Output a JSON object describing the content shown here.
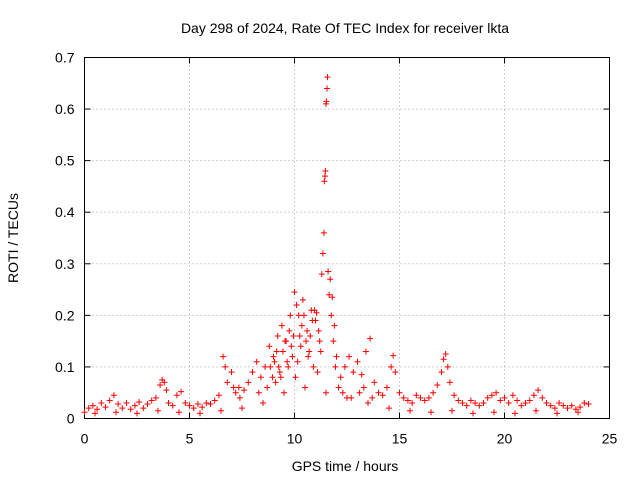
{
  "chart_data": {
    "type": "scatter",
    "title": "Day 298 of 2024, Rate Of TEC Index for receiver lkta",
    "xlabel": "GPS time / hours",
    "ylabel": "ROTI / TECUs",
    "xlim": [
      0,
      25
    ],
    "ylim": [
      0,
      0.7
    ],
    "x_ticks": [
      0,
      5,
      10,
      15,
      20,
      25
    ],
    "y_ticks": [
      0,
      0.1,
      0.2,
      0.3,
      0.4,
      0.5,
      0.6,
      0.7
    ],
    "x_tick_labels": [
      "0",
      "5",
      "10",
      "15",
      "20",
      "25"
    ],
    "y_tick_labels": [
      "0",
      "0.1",
      "0.2",
      "0.3",
      "0.4",
      "0.5",
      "0.6",
      "0.7"
    ],
    "grid": true,
    "marker": "+",
    "color": "#ff0000",
    "series": [
      {
        "name": "ROTI",
        "points": [
          [
            0.0,
            0.012
          ],
          [
            0.2,
            0.02
          ],
          [
            0.4,
            0.025
          ],
          [
            0.6,
            0.018
          ],
          [
            0.8,
            0.03
          ],
          [
            1.0,
            0.022
          ],
          [
            1.2,
            0.035
          ],
          [
            1.4,
            0.045
          ],
          [
            1.6,
            0.028
          ],
          [
            1.8,
            0.02
          ],
          [
            2.0,
            0.03
          ],
          [
            2.2,
            0.018
          ],
          [
            2.4,
            0.025
          ],
          [
            2.6,
            0.032
          ],
          [
            2.8,
            0.02
          ],
          [
            3.0,
            0.028
          ],
          [
            3.2,
            0.035
          ],
          [
            3.4,
            0.04
          ],
          [
            3.6,
            0.065
          ],
          [
            3.7,
            0.075
          ],
          [
            3.8,
            0.07
          ],
          [
            3.9,
            0.055
          ],
          [
            4.0,
            0.03
          ],
          [
            4.2,
            0.025
          ],
          [
            4.4,
            0.045
          ],
          [
            4.6,
            0.052
          ],
          [
            4.8,
            0.03
          ],
          [
            5.0,
            0.025
          ],
          [
            5.2,
            0.02
          ],
          [
            5.4,
            0.028
          ],
          [
            5.6,
            0.022
          ],
          [
            5.8,
            0.03
          ],
          [
            6.0,
            0.028
          ],
          [
            6.2,
            0.035
          ],
          [
            6.4,
            0.045
          ],
          [
            6.6,
            0.12
          ],
          [
            6.7,
            0.1
          ],
          [
            6.8,
            0.07
          ],
          [
            7.0,
            0.09
          ],
          [
            7.1,
            0.06
          ],
          [
            7.2,
            0.05
          ],
          [
            7.4,
            0.04
          ],
          [
            7.6,
            0.055
          ],
          [
            7.8,
            0.07
          ],
          [
            8.0,
            0.09
          ],
          [
            8.2,
            0.11
          ],
          [
            8.4,
            0.08
          ],
          [
            8.6,
            0.1
          ],
          [
            8.8,
            0.14
          ],
          [
            9.0,
            0.12
          ],
          [
            9.2,
            0.16
          ],
          [
            9.4,
            0.18
          ],
          [
            9.6,
            0.15
          ],
          [
            9.8,
            0.2
          ],
          [
            10.0,
            0.245
          ],
          [
            10.1,
            0.22
          ],
          [
            10.2,
            0.2
          ],
          [
            10.4,
            0.23
          ],
          [
            10.6,
            0.17
          ],
          [
            10.8,
            0.21
          ],
          [
            11.0,
            0.19
          ],
          [
            11.2,
            0.15
          ],
          [
            11.3,
            0.28
          ],
          [
            11.35,
            0.32
          ],
          [
            11.4,
            0.36
          ],
          [
            11.42,
            0.46
          ],
          [
            11.45,
            0.47
          ],
          [
            11.47,
            0.48
          ],
          [
            11.5,
            0.61
          ],
          [
            11.52,
            0.615
          ],
          [
            11.55,
            0.64
          ],
          [
            11.57,
            0.662
          ],
          [
            11.6,
            0.285
          ],
          [
            11.7,
            0.27
          ],
          [
            11.8,
            0.235
          ],
          [
            11.9,
            0.18
          ],
          [
            12.0,
            0.12
          ],
          [
            12.2,
            0.08
          ],
          [
            12.4,
            0.1
          ],
          [
            12.6,
            0.12
          ],
          [
            12.8,
            0.09
          ],
          [
            13.0,
            0.11
          ],
          [
            13.2,
            0.085
          ],
          [
            13.4,
            0.13
          ],
          [
            13.6,
            0.155
          ],
          [
            13.8,
            0.07
          ],
          [
            14.0,
            0.05
          ],
          [
            14.2,
            0.045
          ],
          [
            14.4,
            0.06
          ],
          [
            14.6,
            0.1
          ],
          [
            14.7,
            0.122
          ],
          [
            14.8,
            0.09
          ],
          [
            15.0,
            0.05
          ],
          [
            15.2,
            0.04
          ],
          [
            15.4,
            0.035
          ],
          [
            15.6,
            0.03
          ],
          [
            15.8,
            0.045
          ],
          [
            16.0,
            0.04
          ],
          [
            16.2,
            0.035
          ],
          [
            16.4,
            0.04
          ],
          [
            16.6,
            0.05
          ],
          [
            16.8,
            0.065
          ],
          [
            17.0,
            0.09
          ],
          [
            17.1,
            0.115
          ],
          [
            17.2,
            0.125
          ],
          [
            17.3,
            0.1
          ],
          [
            17.4,
            0.07
          ],
          [
            17.6,
            0.045
          ],
          [
            17.8,
            0.035
          ],
          [
            18.0,
            0.03
          ],
          [
            18.2,
            0.025
          ],
          [
            18.4,
            0.035
          ],
          [
            18.6,
            0.03
          ],
          [
            18.8,
            0.025
          ],
          [
            19.0,
            0.03
          ],
          [
            19.2,
            0.04
          ],
          [
            19.4,
            0.045
          ],
          [
            19.6,
            0.05
          ],
          [
            19.8,
            0.035
          ],
          [
            20.0,
            0.04
          ],
          [
            20.2,
            0.03
          ],
          [
            20.4,
            0.045
          ],
          [
            20.6,
            0.035
          ],
          [
            20.8,
            0.025
          ],
          [
            21.0,
            0.03
          ],
          [
            21.2,
            0.035
          ],
          [
            21.4,
            0.045
          ],
          [
            21.6,
            0.055
          ],
          [
            21.8,
            0.04
          ],
          [
            22.0,
            0.03
          ],
          [
            22.2,
            0.025
          ],
          [
            22.4,
            0.02
          ],
          [
            22.6,
            0.03
          ],
          [
            22.8,
            0.025
          ],
          [
            23.0,
            0.02
          ],
          [
            23.2,
            0.025
          ],
          [
            23.4,
            0.018
          ],
          [
            23.6,
            0.022
          ],
          [
            23.8,
            0.03
          ],
          [
            24.0,
            0.028
          ],
          [
            0.5,
            0.01
          ],
          [
            1.5,
            0.012
          ],
          [
            2.5,
            0.01
          ],
          [
            3.5,
            0.015
          ],
          [
            4.5,
            0.012
          ],
          [
            5.5,
            0.01
          ],
          [
            6.5,
            0.015
          ],
          [
            7.5,
            0.02
          ],
          [
            8.5,
            0.03
          ],
          [
            9.5,
            0.05
          ],
          [
            10.5,
            0.06
          ],
          [
            11.5,
            0.05
          ],
          [
            12.5,
            0.04
          ],
          [
            13.5,
            0.03
          ],
          [
            14.5,
            0.02
          ],
          [
            15.5,
            0.015
          ],
          [
            16.5,
            0.012
          ],
          [
            17.5,
            0.015
          ],
          [
            18.5,
            0.01
          ],
          [
            19.5,
            0.012
          ],
          [
            20.5,
            0.01
          ],
          [
            21.5,
            0.015
          ],
          [
            22.5,
            0.01
          ],
          [
            23.5,
            0.012
          ],
          [
            8.3,
            0.05
          ],
          [
            8.7,
            0.06
          ],
          [
            9.1,
            0.07
          ],
          [
            9.3,
            0.09
          ],
          [
            9.7,
            0.1
          ],
          [
            9.9,
            0.12
          ],
          [
            10.3,
            0.14
          ],
          [
            10.7,
            0.13
          ],
          [
            10.9,
            0.1
          ],
          [
            11.1,
            0.09
          ],
          [
            12.1,
            0.06
          ],
          [
            12.3,
            0.05
          ],
          [
            12.7,
            0.04
          ],
          [
            13.1,
            0.05
          ],
          [
            13.3,
            0.06
          ],
          [
            13.7,
            0.04
          ],
          [
            10.05,
            0.08
          ],
          [
            10.15,
            0.11
          ],
          [
            10.25,
            0.16
          ],
          [
            10.35,
            0.18
          ],
          [
            10.45,
            0.2
          ],
          [
            10.55,
            0.15
          ],
          [
            10.65,
            0.12
          ],
          [
            10.75,
            0.16
          ],
          [
            10.85,
            0.19
          ],
          [
            10.95,
            0.21
          ],
          [
            11.05,
            0.205
          ],
          [
            11.15,
            0.17
          ],
          [
            11.25,
            0.13
          ],
          [
            11.65,
            0.24
          ],
          [
            11.75,
            0.2
          ],
          [
            11.85,
            0.15
          ],
          [
            11.95,
            0.1
          ],
          [
            9.45,
            0.13
          ],
          [
            9.55,
            0.15
          ],
          [
            9.65,
            0.11
          ],
          [
            9.75,
            0.17
          ],
          [
            9.85,
            0.14
          ],
          [
            9.95,
            0.16
          ],
          [
            8.85,
            0.1
          ],
          [
            8.95,
            0.08
          ],
          [
            9.05,
            0.11
          ],
          [
            9.15,
            0.13
          ],
          [
            9.25,
            0.1
          ],
          [
            9.35,
            0.08
          ],
          [
            7.35,
            0.06
          ]
        ]
      }
    ]
  }
}
